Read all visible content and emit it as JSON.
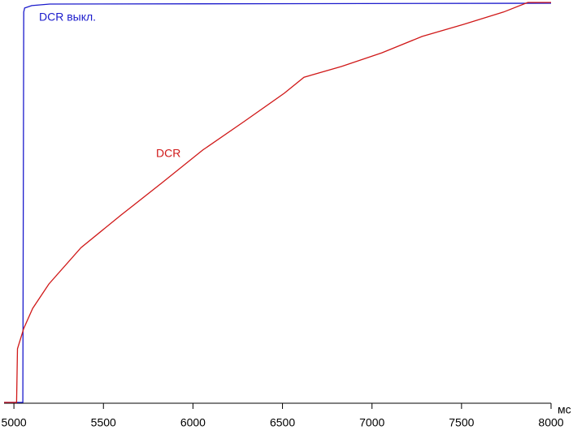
{
  "chart_data": {
    "type": "line",
    "x_unit": "мс",
    "xlim": [
      4945,
      8000
    ],
    "ylim": [
      0,
      100
    ],
    "xticks": [
      5000,
      5500,
      6000,
      6500,
      7000,
      7500,
      8000
    ],
    "annotations": [
      {
        "text": "DCR выкл.",
        "series": 0
      },
      {
        "text": "DCR",
        "series": 1
      }
    ],
    "series": [
      {
        "name": "DCR выкл.",
        "color": "#1a1acc",
        "x": [
          4945,
          5050,
          5055,
          5060,
          5100,
          5200,
          8000
        ],
        "values": [
          0,
          0,
          97.6,
          98.6,
          99.2,
          99.6,
          99.8
        ]
      },
      {
        "name": "DCR",
        "color": "#d01818",
        "x": [
          4945,
          5015,
          5020,
          5055,
          5105,
          5195,
          5375,
          5600,
          5830,
          6055,
          6285,
          6510,
          6620,
          6830,
          7055,
          7280,
          7510,
          7735,
          7870,
          8000
        ],
        "values": [
          0,
          0,
          13.4,
          18.5,
          23.5,
          29.6,
          38.7,
          46.9,
          55.0,
          63.1,
          70.2,
          77.3,
          81.3,
          84.0,
          87.4,
          91.5,
          94.5,
          97.6,
          100,
          100
        ]
      }
    ]
  }
}
